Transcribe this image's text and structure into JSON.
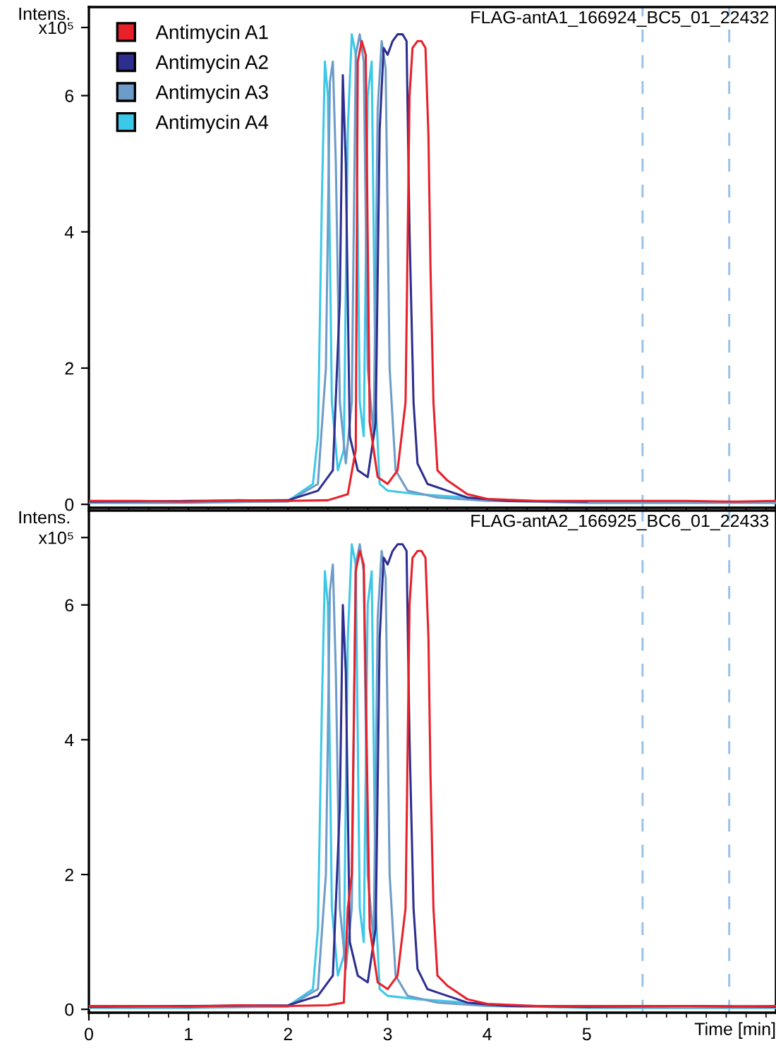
{
  "chart_data": [
    {
      "type": "line",
      "title": "FLAG-antA1_166924_BC5_01_22432",
      "ylabel": "Intens.",
      "xlim": [
        0,
        6.9
      ],
      "ylim": [
        -0.05,
        7.3
      ],
      "xticks": [
        0,
        1,
        2,
        3,
        4,
        5
      ],
      "yticks": [
        0,
        2,
        4,
        6,
        {
          "value": 7,
          "label": "x10⁵"
        }
      ],
      "tick_labels": "y",
      "grid": false,
      "legend": "top left",
      "marker": "none",
      "line_style": "solid",
      "ref_lines": [
        {
          "axis": "x",
          "value": 5.56,
          "color": "#9cc4e8",
          "line_style": "dashed"
        },
        {
          "axis": "x",
          "value": 6.43,
          "color": "#9cc4e8",
          "line_style": "dashed"
        }
      ],
      "series": [
        {
          "name": "Antimycin A1",
          "color": "#e8202a",
          "x": [
            0,
            0.5,
            1,
            1.5,
            2,
            2.4,
            2.6,
            2.68,
            2.7,
            2.74,
            2.78,
            2.82,
            2.9,
            3.0,
            3.1,
            3.18,
            3.22,
            3.25,
            3.3,
            3.34,
            3.38,
            3.41,
            3.43,
            3.46,
            3.5,
            3.6,
            3.7,
            3.8,
            4.0,
            4.5,
            5,
            5.5,
            6,
            6.5,
            6.9
          ],
          "values": [
            0.05,
            0.05,
            0.04,
            0.06,
            0.05,
            0.06,
            0.15,
            0.8,
            6.5,
            6.8,
            6.6,
            1.2,
            0.4,
            0.3,
            0.5,
            1.5,
            6.0,
            6.7,
            6.8,
            6.8,
            6.7,
            5.4,
            3.5,
            1.5,
            0.5,
            0.35,
            0.25,
            0.15,
            0.08,
            0.05,
            0.05,
            0.05,
            0.05,
            0.04,
            0.05
          ]
        },
        {
          "name": "Antimycin A2",
          "color": "#2e2e8f",
          "x": [
            0,
            1,
            2,
            2.3,
            2.45,
            2.52,
            2.55,
            2.58,
            2.62,
            2.7,
            2.8,
            2.88,
            2.92,
            2.96,
            3.0,
            3.05,
            3.1,
            3.15,
            3.19,
            3.22,
            3.26,
            3.3,
            3.4,
            3.5,
            3.6,
            3.8,
            4.2,
            5
          ],
          "values": [
            0.04,
            0.05,
            0.06,
            0.2,
            0.5,
            3.0,
            6.3,
            5.0,
            1.0,
            0.5,
            0.4,
            1.2,
            5.5,
            6.7,
            6.6,
            6.8,
            6.9,
            6.9,
            6.8,
            4.0,
            1.5,
            0.6,
            0.3,
            0.25,
            0.2,
            0.1,
            0.05,
            0.04
          ]
        },
        {
          "name": "Antimycin A3",
          "color": "#6e9cc8",
          "x": [
            0,
            1,
            2,
            2.3,
            2.38,
            2.42,
            2.45,
            2.48,
            2.52,
            2.58,
            2.64,
            2.68,
            2.72,
            2.76,
            2.8,
            2.86,
            2.9,
            2.94,
            2.98,
            3.02,
            3.08,
            3.2,
            3.5,
            4,
            5,
            6,
            6.9
          ],
          "values": [
            0.03,
            0.03,
            0.04,
            0.3,
            2.0,
            6.2,
            6.5,
            5.0,
            1.5,
            0.6,
            1.5,
            6.6,
            6.9,
            6.5,
            2.0,
            1.0,
            5.8,
            6.8,
            6.4,
            2.0,
            0.5,
            0.2,
            0.1,
            0.05,
            0.03,
            0.03,
            0.03
          ]
        },
        {
          "name": "Antimycin A4",
          "color": "#3cc8e8",
          "x": [
            0,
            1,
            2,
            2.25,
            2.3,
            2.34,
            2.37,
            2.4,
            2.44,
            2.5,
            2.56,
            2.6,
            2.64,
            2.68,
            2.72,
            2.76,
            2.8,
            2.84,
            2.88,
            2.92,
            3.0,
            3.3,
            3.8,
            4.2,
            5,
            6,
            6.9
          ],
          "values": [
            0.02,
            0.02,
            0.05,
            0.3,
            1.0,
            4.5,
            6.5,
            6.0,
            1.5,
            0.5,
            0.8,
            5.5,
            6.9,
            6.6,
            1.5,
            1.0,
            6.0,
            6.5,
            1.5,
            0.3,
            0.2,
            0.15,
            0.1,
            0.05,
            0.02,
            0.02,
            0.02
          ]
        }
      ]
    },
    {
      "type": "line",
      "title": "FLAG-antA2_166925_BC6_01_22433",
      "ylabel": "Intens.",
      "xlabel": "Time [min]",
      "xlim": [
        0,
        6.9
      ],
      "ylim": [
        -0.05,
        7.4
      ],
      "xticks": [
        0,
        1,
        2,
        3,
        4,
        5
      ],
      "yticks": [
        0,
        2,
        4,
        6,
        {
          "value": 7,
          "label": "x10⁵"
        }
      ],
      "grid": false,
      "legend": false,
      "marker": "none",
      "line_style": "solid",
      "ref_lines": [
        {
          "axis": "x",
          "value": 5.56,
          "color": "#9cc4e8",
          "line_style": "dashed"
        },
        {
          "axis": "x",
          "value": 6.43,
          "color": "#9cc4e8",
          "line_style": "dashed"
        }
      ],
      "series": [
        {
          "color": "#e8202a",
          "x": [
            0,
            0.5,
            1,
            1.5,
            2,
            2.4,
            2.56,
            2.6,
            2.64,
            2.68,
            2.72,
            2.76,
            2.82,
            2.9,
            3.0,
            3.1,
            3.18,
            3.22,
            3.25,
            3.3,
            3.34,
            3.38,
            3.41,
            3.43,
            3.46,
            3.5,
            3.6,
            3.7,
            3.8,
            4.0,
            4.5,
            5,
            5.5,
            6,
            6.5,
            6.9
          ],
          "values": [
            0.05,
            0.05,
            0.04,
            0.06,
            0.05,
            0.06,
            0.1,
            1.5,
            2.0,
            6.5,
            6.8,
            6.6,
            1.2,
            0.4,
            0.3,
            0.5,
            1.5,
            6.0,
            6.7,
            6.8,
            6.8,
            6.7,
            5.5,
            3.5,
            1.5,
            0.5,
            0.35,
            0.25,
            0.15,
            0.08,
            0.05,
            0.05,
            0.05,
            0.05,
            0.04,
            0.05
          ]
        },
        {
          "color": "#2e2e8f",
          "x": [
            0,
            1,
            2,
            2.3,
            2.45,
            2.52,
            2.55,
            2.58,
            2.62,
            2.7,
            2.8,
            2.88,
            2.92,
            2.96,
            3.0,
            3.05,
            3.1,
            3.15,
            3.19,
            3.22,
            3.26,
            3.3,
            3.4,
            3.5,
            3.6,
            3.8,
            4.2,
            5,
            6,
            6.9
          ],
          "values": [
            0.04,
            0.05,
            0.06,
            0.2,
            0.5,
            3.0,
            6.0,
            5.0,
            1.0,
            0.5,
            0.4,
            1.2,
            5.5,
            6.7,
            6.6,
            6.8,
            6.9,
            6.9,
            6.8,
            4.0,
            1.5,
            0.6,
            0.3,
            0.25,
            0.2,
            0.1,
            0.05,
            0.04,
            0.05,
            0.04
          ]
        },
        {
          "color": "#6e9cc8",
          "x": [
            0,
            1,
            2,
            2.3,
            2.38,
            2.42,
            2.45,
            2.48,
            2.52,
            2.58,
            2.64,
            2.68,
            2.72,
            2.76,
            2.8,
            2.86,
            2.9,
            2.94,
            2.98,
            3.02,
            3.08,
            3.2,
            3.5,
            4,
            5,
            6,
            6.9
          ],
          "values": [
            0.03,
            0.03,
            0.04,
            0.3,
            2.0,
            6.2,
            6.6,
            5.0,
            1.5,
            0.6,
            1.5,
            6.6,
            6.9,
            6.5,
            2.0,
            1.0,
            5.8,
            6.8,
            6.4,
            2.0,
            0.5,
            0.2,
            0.1,
            0.05,
            0.03,
            0.03,
            0.03
          ]
        },
        {
          "color": "#3cc8e8",
          "x": [
            0,
            1,
            2,
            2.25,
            2.3,
            2.34,
            2.37,
            2.4,
            2.44,
            2.5,
            2.56,
            2.6,
            2.64,
            2.68,
            2.72,
            2.76,
            2.8,
            2.84,
            2.88,
            2.92,
            3.0,
            3.3,
            3.8,
            4.2,
            5,
            6,
            6.9
          ],
          "values": [
            0.02,
            0.02,
            0.05,
            0.3,
            1.2,
            4.5,
            6.5,
            6.0,
            1.5,
            0.5,
            0.8,
            5.5,
            6.9,
            6.6,
            1.5,
            1.0,
            6.0,
            6.5,
            1.5,
            0.3,
            0.2,
            0.15,
            0.1,
            0.05,
            0.02,
            0.02,
            0.02
          ]
        }
      ]
    }
  ]
}
